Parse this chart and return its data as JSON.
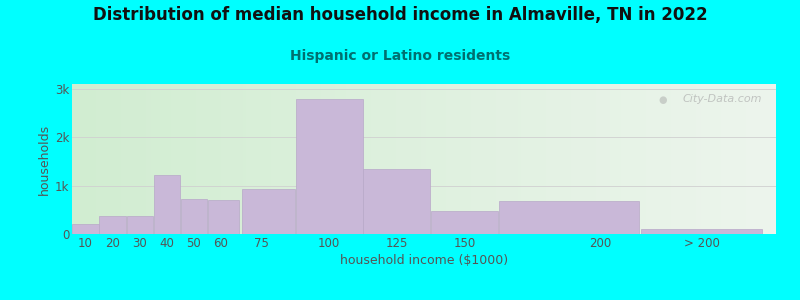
{
  "title": "Distribution of median household income in Almaville, TN in 2022",
  "subtitle": "Hispanic or Latino residents",
  "xlabel": "household income ($1000)",
  "ylabel": "households",
  "background_color": "#00FFFF",
  "bar_color": "#c9b8d8",
  "bar_edge_color": "#b8a8c8",
  "values": [
    200,
    380,
    380,
    1220,
    720,
    700,
    920,
    2800,
    1350,
    480,
    680,
    110
  ],
  "bar_lefts": [
    5,
    15,
    25,
    35,
    45,
    55,
    67.5,
    87.5,
    112.5,
    137.5,
    162.5,
    215
  ],
  "bar_widths": [
    10,
    10,
    10,
    10,
    10,
    12,
    20,
    25,
    25,
    25,
    52,
    45
  ],
  "xlim": [
    5,
    265
  ],
  "ylim": [
    0,
    3100
  ],
  "yticks": [
    0,
    1000,
    2000,
    3000
  ],
  "ytick_labels": [
    "0",
    "1k",
    "2k",
    "3k"
  ],
  "xtick_positions": [
    10,
    20,
    30,
    40,
    50,
    60,
    75,
    100,
    125,
    150,
    200,
    237.5
  ],
  "xtick_labels": [
    "10",
    "20",
    "30",
    "40",
    "50",
    "60",
    "75",
    "100",
    "125",
    "150",
    "200",
    "> 200"
  ],
  "title_fontsize": 12,
  "subtitle_fontsize": 10,
  "axis_label_fontsize": 9,
  "tick_fontsize": 8.5,
  "watermark_text": "City-Data.com",
  "title_color": "#111111",
  "subtitle_color": "#007070",
  "axis_label_color": "#555555",
  "tick_color": "#555555",
  "grid_color": "#d0d0d0",
  "plot_bg_left": "#d8edd8",
  "plot_bg_right": "#e8f0e8"
}
